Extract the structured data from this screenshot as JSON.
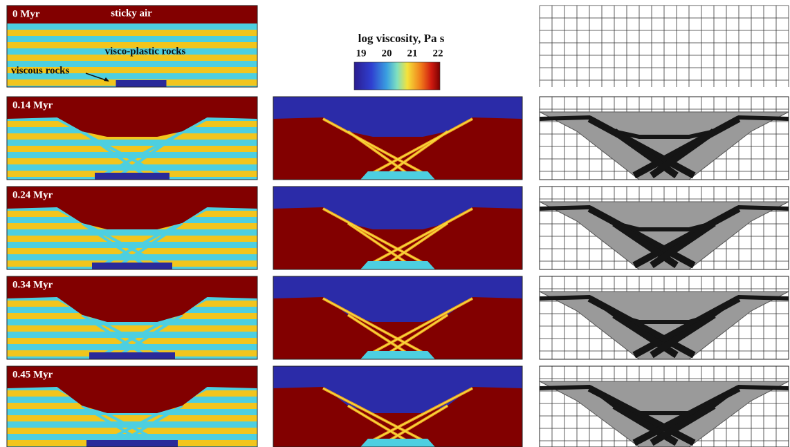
{
  "panels": [
    {
      "label": "0 Myr"
    },
    {
      "label": "0.14 Myr"
    },
    {
      "label": "0.24 Myr"
    },
    {
      "label": "0.34 Myr"
    },
    {
      "label": "0.45 Myr"
    }
  ],
  "annotations": {
    "air": "sticky air",
    "plastic": "visco-plastic rocks",
    "viscous": "viscous rocks"
  },
  "colorbar": {
    "title": "log viscosity, Pa s",
    "ticks": [
      19,
      20,
      21,
      22
    ]
  }
}
